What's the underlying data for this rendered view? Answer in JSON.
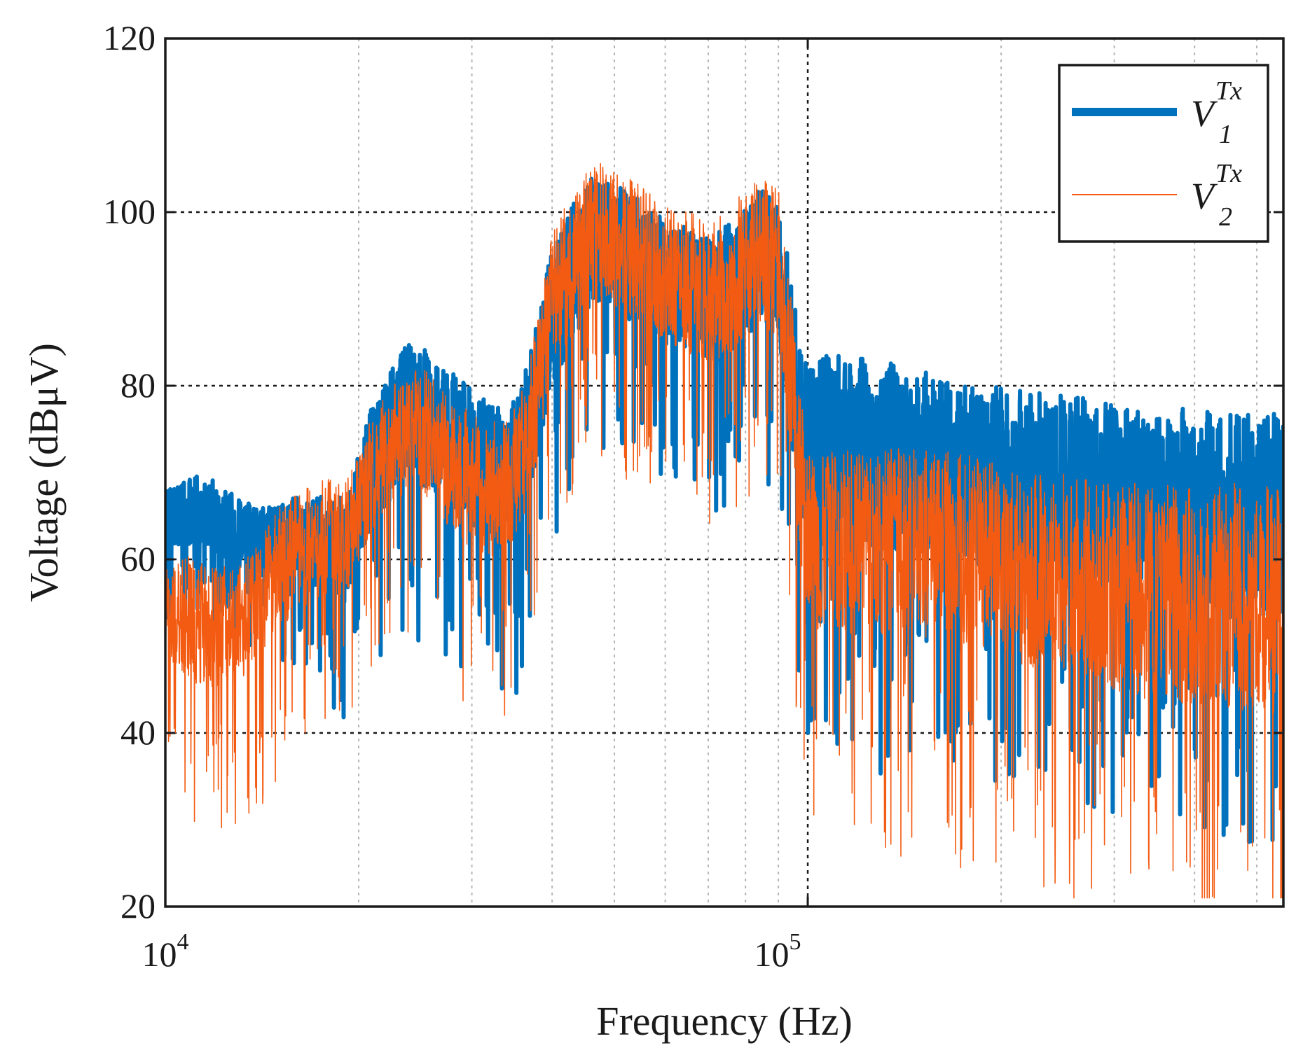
{
  "chart_data": {
    "type": "line",
    "x_scale": "log",
    "xlim": [
      10000,
      550000
    ],
    "ylim": [
      20,
      120
    ],
    "y_ticks": [
      20,
      40,
      60,
      80,
      100,
      120
    ],
    "y_tick_labels": [
      "20",
      "40",
      "60",
      "80",
      "100",
      "120"
    ],
    "x_major_ticks": [
      10000,
      100000
    ],
    "x_tick_labels": [
      {
        "base": "10",
        "exp": "4"
      },
      {
        "base": "10",
        "exp": "5"
      }
    ],
    "xlabel": "Frequency (Hz)",
    "ylabel": "Voltage (dBμV)",
    "grid": true,
    "legend_position": "top-right",
    "series": [
      {
        "name": "V1Tx",
        "legend": {
          "base": "V",
          "sup": "Tx",
          "sub": "1"
        },
        "color": "#0072bd",
        "style": "thick",
        "points": [
          [
            10000,
            64
          ],
          [
            11000,
            66
          ],
          [
            12000,
            65
          ],
          [
            13000,
            63
          ],
          [
            14000,
            62
          ],
          [
            15000,
            62
          ],
          [
            16000,
            63
          ],
          [
            17000,
            62
          ],
          [
            18000,
            62
          ],
          [
            19000,
            61
          ],
          [
            20000,
            66
          ],
          [
            21000,
            71
          ],
          [
            22000,
            73
          ],
          [
            23000,
            76
          ],
          [
            24000,
            78
          ],
          [
            25000,
            77
          ],
          [
            26000,
            75
          ],
          [
            27000,
            74
          ],
          [
            28000,
            74
          ],
          [
            30000,
            72
          ],
          [
            32000,
            70
          ],
          [
            34000,
            69
          ],
          [
            36000,
            73
          ],
          [
            38000,
            80
          ],
          [
            40000,
            88
          ],
          [
            43000,
            93
          ],
          [
            46000,
            97
          ],
          [
            50000,
            96
          ],
          [
            55000,
            94
          ],
          [
            60000,
            92
          ],
          [
            65000,
            91
          ],
          [
            70000,
            90
          ],
          [
            75000,
            91
          ],
          [
            80000,
            93
          ],
          [
            85000,
            95
          ],
          [
            90000,
            93
          ],
          [
            93000,
            86
          ],
          [
            96000,
            78
          ],
          [
            100000,
            71
          ],
          [
            110000,
            73
          ],
          [
            130000,
            72
          ],
          [
            150000,
            71
          ],
          [
            180000,
            70
          ],
          [
            220000,
            69
          ],
          [
            260000,
            68
          ],
          [
            300000,
            67
          ],
          [
            350000,
            66
          ],
          [
            400000,
            66
          ],
          [
            450000,
            65
          ],
          [
            500000,
            65
          ],
          [
            550000,
            65
          ]
        ],
        "band": [
          [
            10000,
            5
          ],
          [
            15000,
            5
          ],
          [
            20000,
            8
          ],
          [
            25000,
            10
          ],
          [
            30000,
            10
          ],
          [
            40000,
            10
          ],
          [
            60000,
            9
          ],
          [
            90000,
            10
          ],
          [
            100000,
            14
          ],
          [
            200000,
            13
          ],
          [
            550000,
            15
          ]
        ]
      },
      {
        "name": "V2Tx",
        "legend": {
          "base": "V",
          "sup": "Tx",
          "sub": "2"
        },
        "color": "#f35b12",
        "style": "thin",
        "points": [
          [
            10000,
            55
          ],
          [
            11000,
            53
          ],
          [
            12000,
            52
          ],
          [
            13000,
            53
          ],
          [
            14000,
            55
          ],
          [
            15000,
            59
          ],
          [
            16000,
            61
          ],
          [
            17000,
            62
          ],
          [
            18000,
            63
          ],
          [
            19000,
            62
          ],
          [
            20000,
            66
          ],
          [
            21000,
            70
          ],
          [
            22000,
            72
          ],
          [
            23000,
            74
          ],
          [
            24000,
            75
          ],
          [
            25000,
            75
          ],
          [
            26000,
            74
          ],
          [
            27000,
            72
          ],
          [
            28000,
            71
          ],
          [
            30000,
            69
          ],
          [
            32000,
            68
          ],
          [
            34000,
            68
          ],
          [
            36000,
            72
          ],
          [
            38000,
            80
          ],
          [
            40000,
            90
          ],
          [
            43000,
            94
          ],
          [
            46000,
            98
          ],
          [
            50000,
            97
          ],
          [
            55000,
            95
          ],
          [
            60000,
            93
          ],
          [
            65000,
            92
          ],
          [
            70000,
            91
          ],
          [
            75000,
            92
          ],
          [
            80000,
            94
          ],
          [
            85000,
            96
          ],
          [
            90000,
            94
          ],
          [
            93000,
            85
          ],
          [
            96000,
            75
          ],
          [
            100000,
            62
          ],
          [
            110000,
            62
          ],
          [
            130000,
            62
          ],
          [
            150000,
            62
          ],
          [
            180000,
            61
          ],
          [
            220000,
            59
          ],
          [
            260000,
            58
          ],
          [
            300000,
            57
          ],
          [
            350000,
            56
          ],
          [
            400000,
            56
          ],
          [
            450000,
            56
          ],
          [
            500000,
            55
          ],
          [
            550000,
            55
          ]
        ],
        "band": [
          [
            10000,
            9
          ],
          [
            15000,
            9
          ],
          [
            20000,
            8
          ],
          [
            25000,
            9
          ],
          [
            30000,
            10
          ],
          [
            40000,
            10
          ],
          [
            60000,
            10
          ],
          [
            90000,
            11
          ],
          [
            100000,
            13
          ],
          [
            200000,
            14
          ],
          [
            550000,
            17
          ]
        ]
      }
    ]
  }
}
